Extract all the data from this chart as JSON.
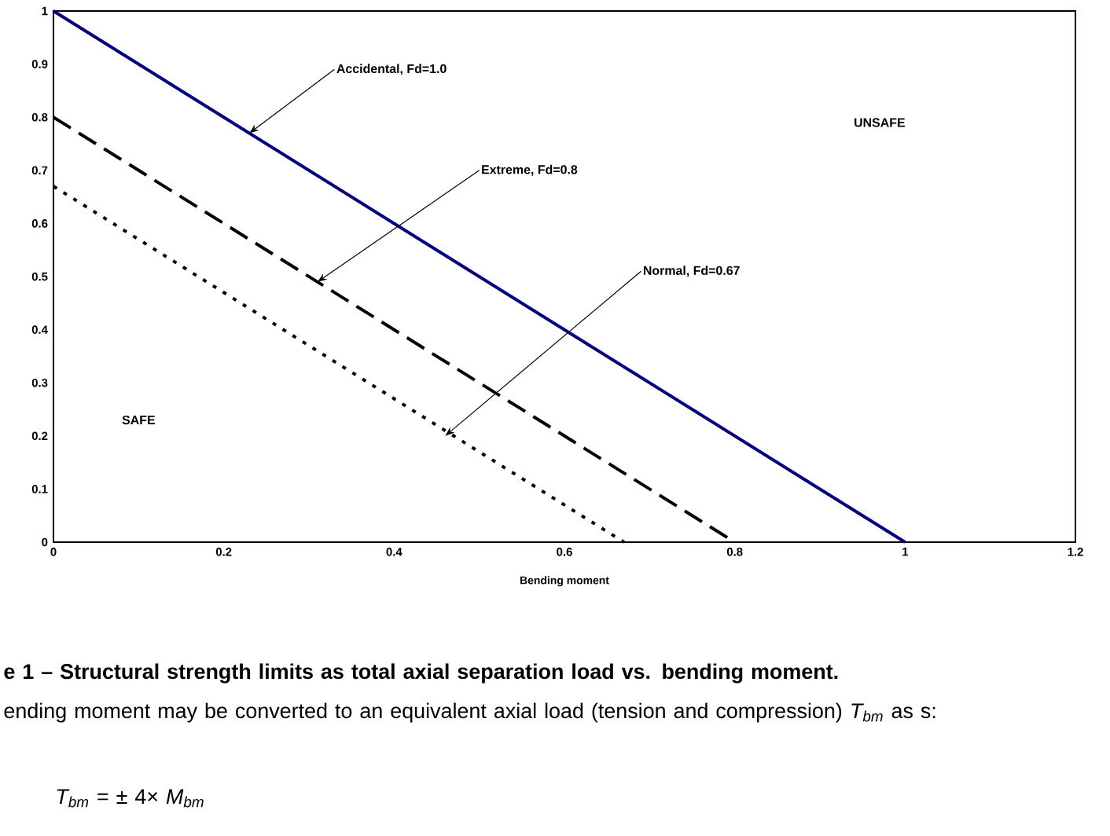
{
  "chart_data": {
    "type": "line",
    "xlabel": "Bending moment",
    "xlim": [
      0,
      1.2
    ],
    "xticks": [
      0,
      0.2,
      0.4,
      0.6,
      0.8,
      1,
      1.2
    ],
    "ylim": [
      0,
      1
    ],
    "yticks": [
      0,
      0.1,
      0.2,
      0.3,
      0.4,
      0.5,
      0.6,
      0.7,
      0.8,
      0.9,
      1
    ],
    "grid": false,
    "marker": "none",
    "series": [
      {
        "color": "#000080",
        "x": [
          0,
          1
        ],
        "values": [
          1,
          0
        ],
        "line_style": "solid"
      },
      {
        "color": "#000000",
        "x": [
          0,
          0.8
        ],
        "values": [
          0.8,
          0
        ],
        "line_style": "dashed"
      },
      {
        "color": "#000000",
        "x": [
          0,
          0.67
        ],
        "values": [
          0.67,
          0
        ],
        "line_style": "dotted"
      }
    ],
    "annotations": [
      {
        "text": "Accidental, Fd=1.0",
        "x": 0.23,
        "y": 0.77
      },
      {
        "text": "Extreme, Fd=0.8",
        "x": 0.31,
        "y": 0.49
      },
      {
        "text": "Normal, Fd=0.67",
        "x": 0.46,
        "y": 0.2
      },
      "UNSAFE",
      "SAFE",
      "e 1 – Structural strength limits as total axial separation load vs. bending moment.",
      "ending moment may be converted to an equivalent axial load (tension and compression) *T$_{bm}$* as s:",
      "*T$_{bm}$* = ± 4× *M$_{bm}$*"
    ]
  }
}
